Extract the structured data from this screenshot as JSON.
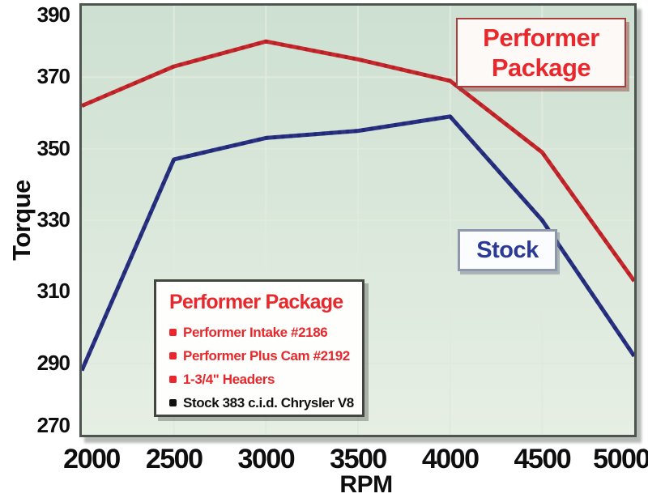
{
  "chart_data": {
    "type": "line",
    "title": "",
    "xlabel": "RPM",
    "ylabel": "Torque",
    "xlim": [
      2000,
      5000
    ],
    "ylim": [
      270,
      390
    ],
    "x_ticks": [
      2000,
      2500,
      3000,
      3500,
      4000,
      4500,
      5000
    ],
    "y_ticks": [
      270,
      290,
      310,
      330,
      350,
      370,
      390
    ],
    "grid": true,
    "grid_color": "#dfeadd",
    "bg_gradient": [
      "#cde0d1",
      "#e7efe4"
    ],
    "x": [
      2000,
      2500,
      3000,
      3500,
      4000,
      4500,
      5000
    ],
    "series": [
      {
        "name": "Performer Package",
        "color": "#c9282d",
        "shade": "#8f181c",
        "values": [
          362,
          373,
          380,
          375,
          369,
          349,
          313
        ]
      },
      {
        "name": "Stock",
        "color": "#2a3285",
        "shade": "#151b52",
        "values": [
          288,
          347,
          353,
          355,
          359,
          330,
          292
        ]
      }
    ],
    "legend_position": "inside"
  },
  "annotations": {
    "performer_box": {
      "line1": "Performer",
      "line2": "Package",
      "text_color": "#e8282c"
    },
    "stock_box": {
      "label": "Stock",
      "text_color": "#2b3a94"
    },
    "legend": {
      "title": "Performer Package",
      "title_color": "#e8282c",
      "items": [
        {
          "text": "Performer Intake #2186",
          "color": "#e8282c"
        },
        {
          "text": "Performer Plus Cam #2192",
          "color": "#e8282c"
        },
        {
          "text": "1-3/4\" Headers",
          "color": "#e8282c"
        },
        {
          "text": "Stock 383 c.i.d. Chrysler V8",
          "color": "#111111"
        }
      ]
    }
  }
}
